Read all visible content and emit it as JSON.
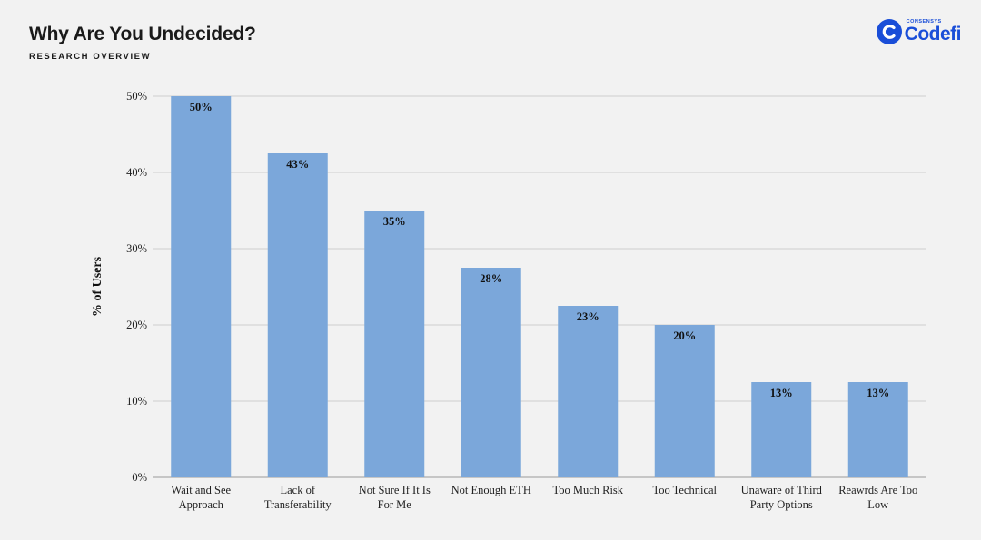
{
  "header": {
    "title": "Why Are You Undecided?",
    "subtitle": "RESEARCH OVERVIEW"
  },
  "logo": {
    "small": "CONSENSYS",
    "big": "Codefi",
    "color": "#1a4ed8",
    "icon": "codefi-logo-icon"
  },
  "colors": {
    "bar": "#7ba7da",
    "grid": "#cfcfcf",
    "background": "#f2f2f2"
  },
  "chart_data": {
    "type": "bar",
    "title": "",
    "xlabel": "",
    "ylabel": "% of Users",
    "ylim": [
      0,
      50
    ],
    "yticks": [
      0,
      10,
      20,
      30,
      40,
      50
    ],
    "ytick_labels": [
      "0%",
      "10%",
      "20%",
      "30%",
      "40%",
      "50%"
    ],
    "grid": true,
    "categories": [
      [
        "Wait and See",
        "Approach"
      ],
      [
        "Lack of",
        "Transferability"
      ],
      [
        "Not Sure If It Is",
        "For Me"
      ],
      [
        "Not Enough ETH"
      ],
      [
        "Too Much Risk"
      ],
      [
        "Too Technical"
      ],
      [
        "Unaware of Third",
        "Party Options"
      ],
      [
        "Reawrds Are Too",
        "Low"
      ]
    ],
    "values": [
      50,
      42.5,
      35,
      27.5,
      22.5,
      20,
      12.5,
      12.5
    ],
    "data_labels": [
      "50%",
      "43%",
      "35%",
      "28%",
      "23%",
      "20%",
      "13%",
      "13%"
    ]
  }
}
